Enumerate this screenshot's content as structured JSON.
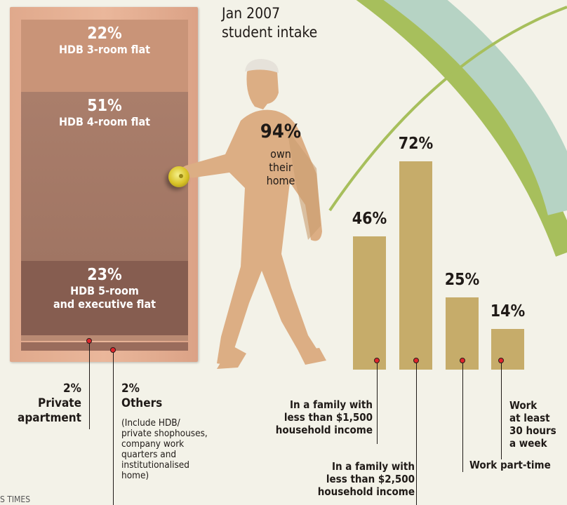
{
  "header": {
    "intake": [
      "Jan 2007",
      "student intake"
    ]
  },
  "home_ownership": {
    "pct": "94%",
    "label": [
      "own",
      "their",
      "home"
    ]
  },
  "housing": {
    "room3": {
      "pct": "22%",
      "label": "HDB 3-room flat"
    },
    "room4": {
      "pct": "51%",
      "label": "HDB 4-room flat"
    },
    "room5": {
      "pct": "23%",
      "label": [
        "HDB 5-room",
        "and executive flat"
      ]
    },
    "private": {
      "pct": "2%",
      "label": [
        "Private",
        "apartment"
      ]
    },
    "others": {
      "pct": "2%",
      "label": "Others",
      "note": [
        "(Include HDB/",
        "private shophouses,",
        "company work",
        "quarters and",
        "institutionalised",
        "home)"
      ]
    }
  },
  "source_fragment": "S TIMES",
  "chart_data": {
    "type": "bar",
    "title": "",
    "ylim": [
      0,
      80
    ],
    "categories": [
      "In a family with less than $1,500 household income",
      "In a family with less than $2,500 household income",
      "Work part-time",
      "Work at least 30 hours a week"
    ],
    "values": [
      46,
      72,
      25,
      14
    ],
    "value_labels": [
      "46%",
      "72%",
      "25%",
      "14%"
    ],
    "category_lines": [
      [
        "In a family with",
        "less than $1,500",
        "household income"
      ],
      [
        "In a family with",
        "less than $2,500",
        "household income"
      ],
      [
        "Work part-time"
      ],
      [
        "Work",
        "at least",
        "30 hours",
        "a week"
      ]
    ],
    "colors": {
      "bar": "#c6ac6a",
      "dot": "#e0252b"
    }
  },
  "colors": {
    "arc_green": "#a7bf5c",
    "arc_teal": "#b6d3c4",
    "background": "#f3f2e8"
  }
}
